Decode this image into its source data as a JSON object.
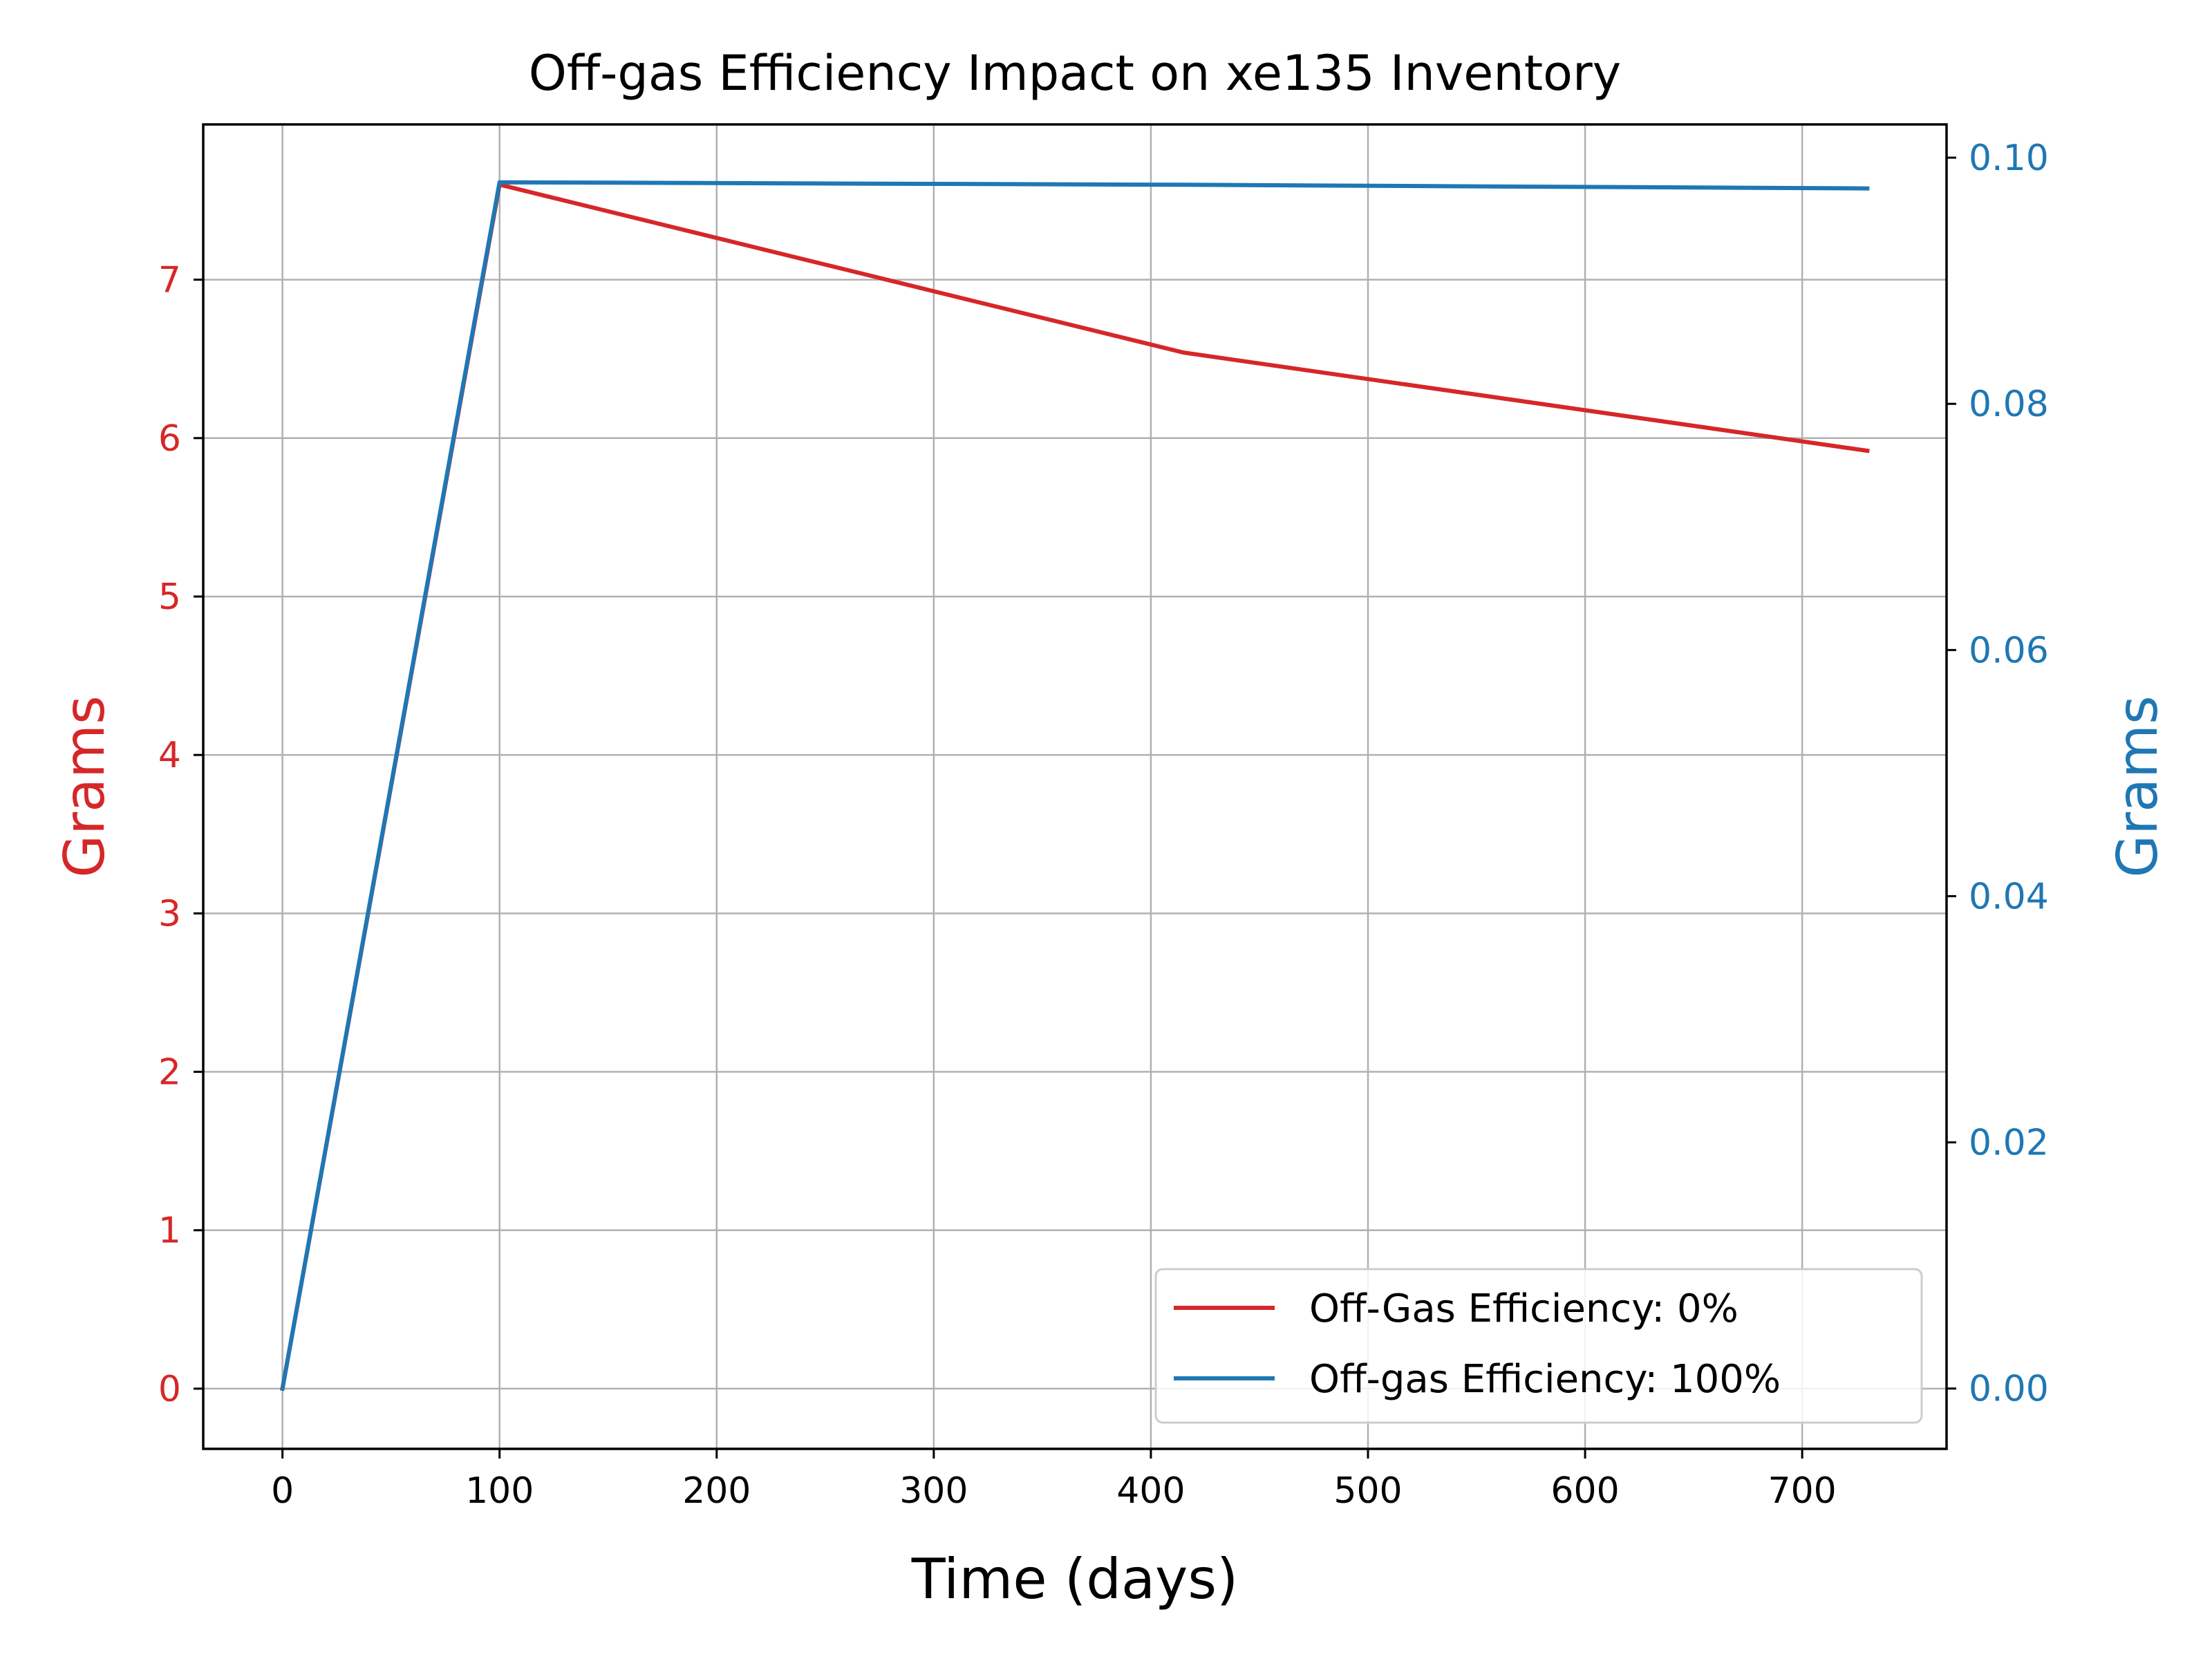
{
  "chart_data": {
    "type": "line",
    "title": "Off-gas Efficiency Impact on xe135 Inventory",
    "xlabel": "Time (days)",
    "ylabel_left": "Grams",
    "ylabel_right": "Grams",
    "xlim": [
      -36.5,
      766.5
    ],
    "ylim_left": [
      -0.38,
      7.98
    ],
    "ylim_right": [
      -0.0049,
      0.1027
    ],
    "x_ticks": [
      "0",
      "100",
      "200",
      "300",
      "400",
      "500",
      "600",
      "700"
    ],
    "y_left_ticks": [
      "0",
      "1",
      "2",
      "3",
      "4",
      "5",
      "6",
      "7"
    ],
    "y_right_ticks": [
      "0.00",
      "0.02",
      "0.04",
      "0.06",
      "0.08",
      "0.10"
    ],
    "grid": true,
    "legend_position": "lower-right",
    "series": [
      {
        "name": "Off-Gas Efficiency: 0%",
        "axis": "left",
        "color": "#d62728",
        "x": [
          0,
          100,
          415,
          730
        ],
        "y": [
          0,
          7.6,
          6.54,
          5.92
        ]
      },
      {
        "name": "Off-gas Efficiency: 100%",
        "axis": "right",
        "color": "#1f77b4",
        "x": [
          0,
          100,
          415,
          730
        ],
        "y": [
          0,
          0.098,
          0.0978,
          0.0975
        ]
      }
    ]
  }
}
